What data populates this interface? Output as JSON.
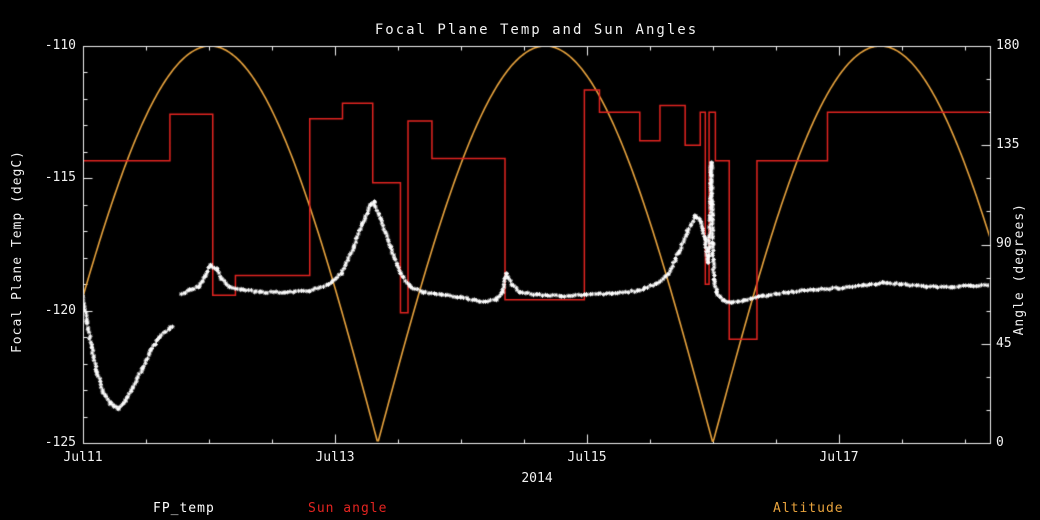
{
  "colors": {
    "background": "#000000",
    "axis": "#f2f2f2",
    "fp_temp": "#ffffff",
    "sun_angle": "#e32420",
    "altitude": "#e8a33d"
  },
  "chart_data": {
    "type": "line",
    "title": "Focal Plane Temp and Sun Angles",
    "background": "#000000",
    "axis_color": "#f2f2f2",
    "grid": false,
    "x_axis": {
      "title": "2014",
      "range": [
        0,
        7.2
      ],
      "unit": "days since Jul11",
      "ticks": [
        {
          "t": 0,
          "label": "Jul11"
        },
        {
          "t": 2,
          "label": "Jul13"
        },
        {
          "t": 4,
          "label": "Jul15"
        },
        {
          "t": 6,
          "label": "Jul17"
        }
      ],
      "minor_tick_step": 0.5
    },
    "y_axis_left": {
      "title": "Focal Plane Temp (degC)",
      "range": [
        -125,
        -110
      ],
      "ticks": [
        {
          "v": -110,
          "label": "-110"
        },
        {
          "v": -115,
          "label": "-115"
        },
        {
          "v": -120,
          "label": "-120"
        },
        {
          "v": -125,
          "label": "-125"
        }
      ],
      "minor_tick_step": 1
    },
    "y_axis_right": {
      "title": "Angle (degrees)",
      "range": [
        0,
        180
      ],
      "ticks": [
        {
          "v": 180,
          "label": "180"
        },
        {
          "v": 135,
          "label": "135"
        },
        {
          "v": 90,
          "label": "90"
        },
        {
          "v": 45,
          "label": "45"
        },
        {
          "v": 0,
          "label": "0"
        }
      ],
      "minor_tick_step": 15
    },
    "series": [
      {
        "name": "FP_temp",
        "axis": "left",
        "style": "scatter",
        "marker": "asterisk",
        "color": "#ffffff",
        "segments": [
          [
            [
              0.0,
              -119.4
            ],
            [
              0.03,
              -120.4
            ],
            [
              0.07,
              -121.4
            ],
            [
              0.11,
              -122.3
            ],
            [
              0.16,
              -123.1
            ],
            [
              0.22,
              -123.5
            ],
            [
              0.28,
              -123.7
            ],
            [
              0.34,
              -123.4
            ],
            [
              0.4,
              -122.9
            ],
            [
              0.47,
              -122.2
            ],
            [
              0.54,
              -121.5
            ],
            [
              0.61,
              -121.0
            ],
            [
              0.68,
              -120.7
            ],
            [
              0.71,
              -120.6
            ]
          ],
          [
            [
              0.78,
              -119.4
            ],
            [
              0.85,
              -119.2
            ],
            [
              0.92,
              -119.1
            ],
            [
              0.97,
              -118.7
            ],
            [
              1.01,
              -118.3
            ],
            [
              1.06,
              -118.4
            ],
            [
              1.1,
              -118.8
            ],
            [
              1.16,
              -119.1
            ],
            [
              1.25,
              -119.2
            ],
            [
              1.4,
              -119.3
            ],
            [
              1.6,
              -119.3
            ],
            [
              1.8,
              -119.25
            ],
            [
              1.95,
              -119.0
            ],
            [
              2.05,
              -118.6
            ],
            [
              2.15,
              -117.6
            ],
            [
              2.22,
              -116.7
            ],
            [
              2.28,
              -116.0
            ],
            [
              2.31,
              -115.9
            ],
            [
              2.36,
              -116.5
            ],
            [
              2.44,
              -117.6
            ],
            [
              2.52,
              -118.6
            ],
            [
              2.6,
              -119.1
            ],
            [
              2.7,
              -119.3
            ],
            [
              2.85,
              -119.4
            ],
            [
              3.0,
              -119.5
            ],
            [
              3.15,
              -119.65
            ],
            [
              3.28,
              -119.6
            ],
            [
              3.33,
              -119.3
            ],
            [
              3.36,
              -118.6
            ],
            [
              3.4,
              -119.0
            ],
            [
              3.47,
              -119.3
            ],
            [
              3.6,
              -119.4
            ],
            [
              3.8,
              -119.45
            ],
            [
              4.0,
              -119.4
            ],
            [
              4.2,
              -119.35
            ],
            [
              4.4,
              -119.25
            ],
            [
              4.55,
              -119.0
            ],
            [
              4.65,
              -118.6
            ],
            [
              4.73,
              -117.8
            ],
            [
              4.8,
              -117.0
            ],
            [
              4.86,
              -116.4
            ],
            [
              4.9,
              -116.6
            ],
            [
              4.94,
              -117.3
            ],
            [
              4.965,
              -118.2
            ],
            [
              4.98,
              -116.5
            ],
            [
              4.985,
              -114.9
            ],
            [
              4.99,
              -114.4
            ],
            [
              4.995,
              -116.0
            ],
            [
              5.0,
              -117.5
            ],
            [
              5.01,
              -118.8
            ],
            [
              5.03,
              -119.3
            ],
            [
              5.08,
              -119.6
            ],
            [
              5.15,
              -119.7
            ],
            [
              5.25,
              -119.6
            ],
            [
              5.4,
              -119.45
            ],
            [
              5.6,
              -119.3
            ],
            [
              5.8,
              -119.2
            ],
            [
              6.0,
              -119.15
            ],
            [
              6.2,
              -119.05
            ],
            [
              6.35,
              -118.95
            ],
            [
              6.5,
              -119.0
            ],
            [
              6.7,
              -119.1
            ],
            [
              6.9,
              -119.1
            ],
            [
              7.05,
              -119.05
            ],
            [
              7.2,
              -119.05
            ]
          ]
        ]
      },
      {
        "name": "Sun angle",
        "axis": "right",
        "style": "step",
        "color": "#e32420",
        "steps": [
          [
            0.0,
            128
          ],
          [
            0.69,
            149
          ],
          [
            1.03,
            67
          ],
          [
            1.21,
            76
          ],
          [
            1.8,
            147
          ],
          [
            2.06,
            154
          ],
          [
            2.3,
            118
          ],
          [
            2.52,
            59
          ],
          [
            2.58,
            146
          ],
          [
            2.77,
            129
          ],
          [
            3.35,
            65
          ],
          [
            3.98,
            160
          ],
          [
            4.1,
            150
          ],
          [
            4.42,
            137
          ],
          [
            4.58,
            153
          ],
          [
            4.78,
            135
          ],
          [
            4.9,
            150
          ],
          [
            4.94,
            72
          ],
          [
            4.97,
            150
          ],
          [
            5.02,
            128
          ],
          [
            5.13,
            47
          ],
          [
            5.35,
            128
          ],
          [
            5.91,
            150
          ]
        ],
        "end_t": 7.2
      },
      {
        "name": "Altitude",
        "axis": "right",
        "style": "abs_sine",
        "color": "#e8a33d",
        "amplitude": 180,
        "period_days": 2.66,
        "zero_at_day": 2.34
      }
    ],
    "legend": {
      "position": "bottom",
      "entries": [
        {
          "label": "FP_temp",
          "color": "#ffffff"
        },
        {
          "label": "Sun angle",
          "color": "#e32420"
        },
        {
          "label": "Altitude",
          "color": "#e8a33d"
        }
      ]
    }
  }
}
